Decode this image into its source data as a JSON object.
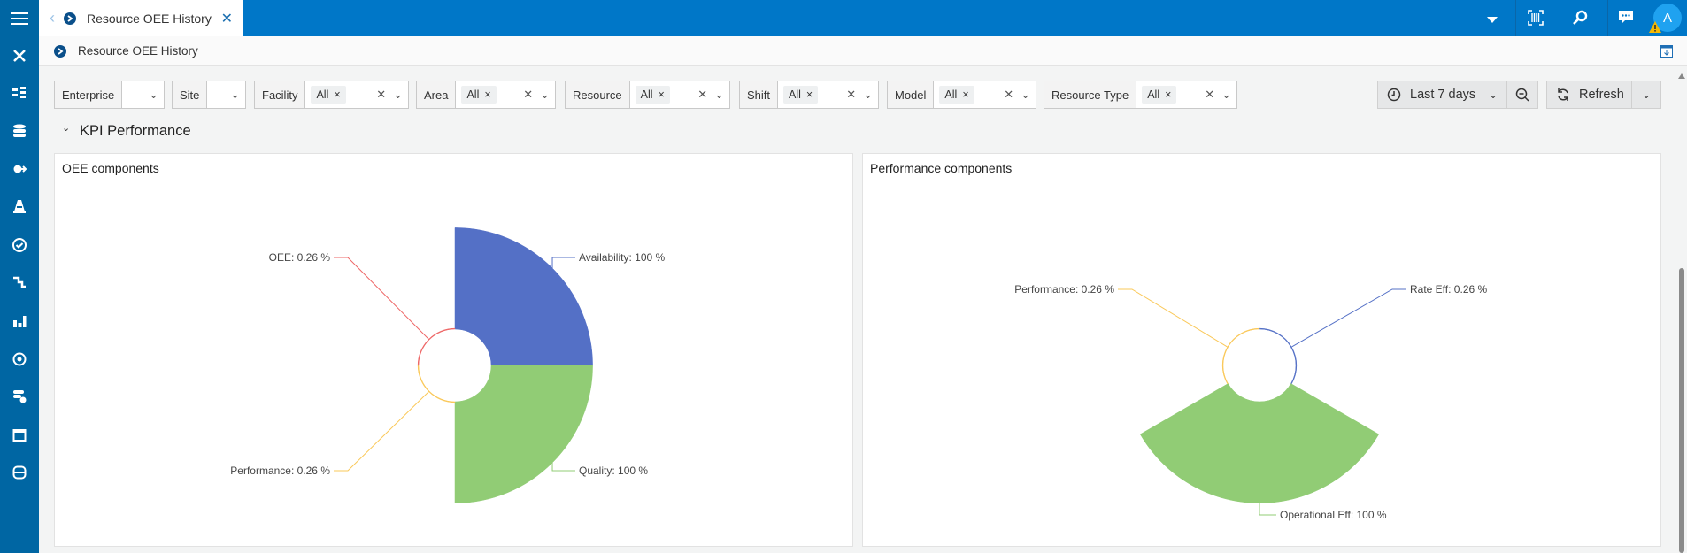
{
  "tab": {
    "title": "Resource OEE History"
  },
  "breadcrumb": {
    "title": "Resource OEE History"
  },
  "user": {
    "avatar_initial": "A"
  },
  "filters": [
    {
      "label": "Enterprise",
      "value": ""
    },
    {
      "label": "Site",
      "value": ""
    },
    {
      "label": "Facility",
      "value": "All"
    },
    {
      "label": "Area",
      "value": "All"
    },
    {
      "label": "Resource",
      "value": "All"
    },
    {
      "label": "Shift",
      "value": "All"
    },
    {
      "label": "Model",
      "value": "All"
    },
    {
      "label": "Resource Type",
      "value": "All"
    }
  ],
  "time_range": {
    "label": "Last 7 days"
  },
  "refresh": {
    "label": "Refresh"
  },
  "section": {
    "title": "KPI Performance"
  },
  "colors": {
    "blue": "#5470c6",
    "green": "#91cc75",
    "yellow": "#fac858",
    "red": "#ee6666",
    "topbar": "#0077c8",
    "sidebar": "#0066a3"
  },
  "chart_data": [
    {
      "type": "pie",
      "variant": "rose",
      "title": "OEE components",
      "slices": [
        {
          "name": "Availability",
          "value": 100,
          "label": "Availability: 100 %",
          "color": "#5470c6"
        },
        {
          "name": "Quality",
          "value": 100,
          "label": "Quality: 100 %",
          "color": "#91cc75"
        },
        {
          "name": "Performance",
          "value": 0.26,
          "label": "Performance: 0.26 %",
          "color": "#fac858"
        },
        {
          "name": "OEE",
          "value": 0.26,
          "label": "OEE: 0.26 %",
          "color": "#ee6666"
        }
      ]
    },
    {
      "type": "pie",
      "variant": "rose",
      "title": "Performance components",
      "slices": [
        {
          "name": "Rate Eff",
          "value": 0.26,
          "label": "Rate Eff: 0.26 %",
          "color": "#5470c6"
        },
        {
          "name": "Operational Eff",
          "value": 100,
          "label": "Operational Eff: 100 %",
          "color": "#91cc75"
        },
        {
          "name": "Performance",
          "value": 0.26,
          "label": "Performance: 0.26 %",
          "color": "#fac858"
        }
      ]
    }
  ]
}
